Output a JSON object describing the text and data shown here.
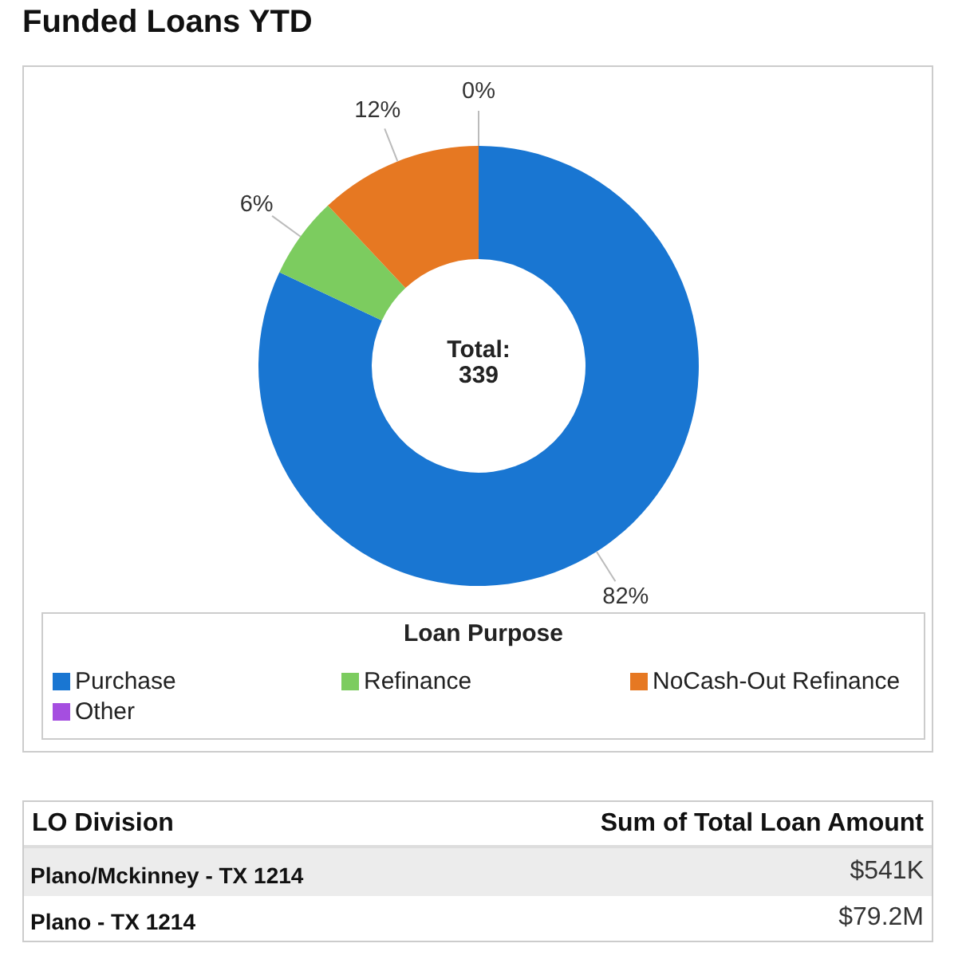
{
  "chart_data": [
    {
      "type": "donut",
      "title": "Funded Loans YTD",
      "categories": [
        "Purchase",
        "Refinance",
        "NoCash-Out Refinance",
        "Other"
      ],
      "values": [
        82,
        6,
        12,
        0
      ],
      "colors": [
        "#1976d2",
        "#7ccc5f",
        "#e67822",
        "#a54ee0"
      ],
      "value_labels": [
        "82%",
        "6%",
        "12%",
        "0%"
      ],
      "legend": "bottom",
      "legend_title": "Loan Purpose",
      "annotations": [
        "Total:",
        "339"
      ]
    },
    {
      "type": "other",
      "xlabel": "LO Division",
      "ylabel": "Sum of Total Loan Amount",
      "categories": [
        "Plano/Mckinney - TX 1214",
        "Plano - TX 1214"
      ],
      "value_labels": [
        "$541K",
        "$79.2M"
      ]
    }
  ]
}
